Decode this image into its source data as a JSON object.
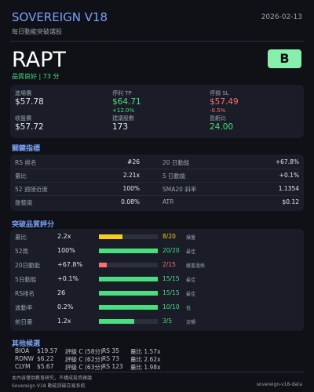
{
  "header": {
    "title": "SOVEREIGN V18",
    "subtitle": "每日動能突破選股",
    "date": "2026-02-13"
  },
  "stock": {
    "ticker": "RAPT",
    "quality": "品質良好 | 73 分",
    "grade": "B"
  },
  "prices": [
    {
      "label": "進場價",
      "value": "$57.78",
      "color": "#e6e6e6"
    },
    {
      "label": "停利 TP",
      "value": "$64.71",
      "sub": "+12.0%",
      "color": "#4ade80"
    },
    {
      "label": "停損 SL",
      "value": "$57.49",
      "sub": "-0.5%",
      "color": "#f87171"
    },
    {
      "label": "收盤價",
      "value": "$57.72",
      "color": "#e6e6e6"
    },
    {
      "label": "建議股數",
      "value": "173",
      "color": "#e6e6e6"
    },
    {
      "label": "盈虧比",
      "value": "24.00",
      "color": "#4ade80"
    }
  ],
  "metrics": {
    "title": "關鍵指標",
    "rows": [
      [
        "RS 排名",
        "#26",
        "20 日動能",
        "+67.8%"
      ],
      [
        "量比",
        "2.21x",
        "5 日動能",
        "+0.1%"
      ],
      [
        "52 週接近度",
        "100%",
        "SMA20 斜率",
        "1.1354"
      ],
      [
        "盤整度",
        "0.08%",
        "ATR",
        "$0.12"
      ]
    ]
  },
  "scores": {
    "title": "突破品質評分",
    "rows": [
      {
        "label": "量比",
        "value": "2.2x",
        "score": 8,
        "max": 20,
        "note": "爆量",
        "color": "#facc15"
      },
      {
        "label": "52周",
        "value": "100%",
        "score": 20,
        "max": 20,
        "note": "最佳",
        "color": "#4ade80"
      },
      {
        "label": "20日動能",
        "value": "+67.8%",
        "score": 2,
        "max": 15,
        "note": "嚴重過熱",
        "color": "#f87171"
      },
      {
        "label": "5日動能",
        "value": "+0.1%",
        "score": 15,
        "max": 15,
        "note": "最佳",
        "color": "#4ade80"
      },
      {
        "label": "RS排名",
        "value": "26",
        "score": 15,
        "max": 15,
        "note": "最佳",
        "color": "#4ade80"
      },
      {
        "label": "波動率",
        "value": "0.2%",
        "score": 10,
        "max": 10,
        "note": "低",
        "color": "#4ade80"
      },
      {
        "label": "前日量",
        "value": "1.2x",
        "score": 3,
        "max": 5,
        "note": "流暢",
        "color": "#4ade80"
      }
    ]
  },
  "others": {
    "title": "其他候選",
    "rows": [
      [
        "BIOA",
        "$19.57",
        "評級 C (58分)",
        "RS 35",
        "量比 1.57x"
      ],
      [
        "RDNW",
        "$6.22",
        "評級 C (62分)",
        "RS 73",
        "量比 2.62x"
      ],
      [
        "CLYM",
        "$5.67",
        "評級 C (63分)",
        "RS 123",
        "量比 1.98x"
      ]
    ]
  },
  "footer": {
    "disclaimer": "本內容僅供教育研究，不構成投資建議",
    "system": "Sovereign V18 動能突破交易系統",
    "source": "sovereign-v18-data"
  }
}
